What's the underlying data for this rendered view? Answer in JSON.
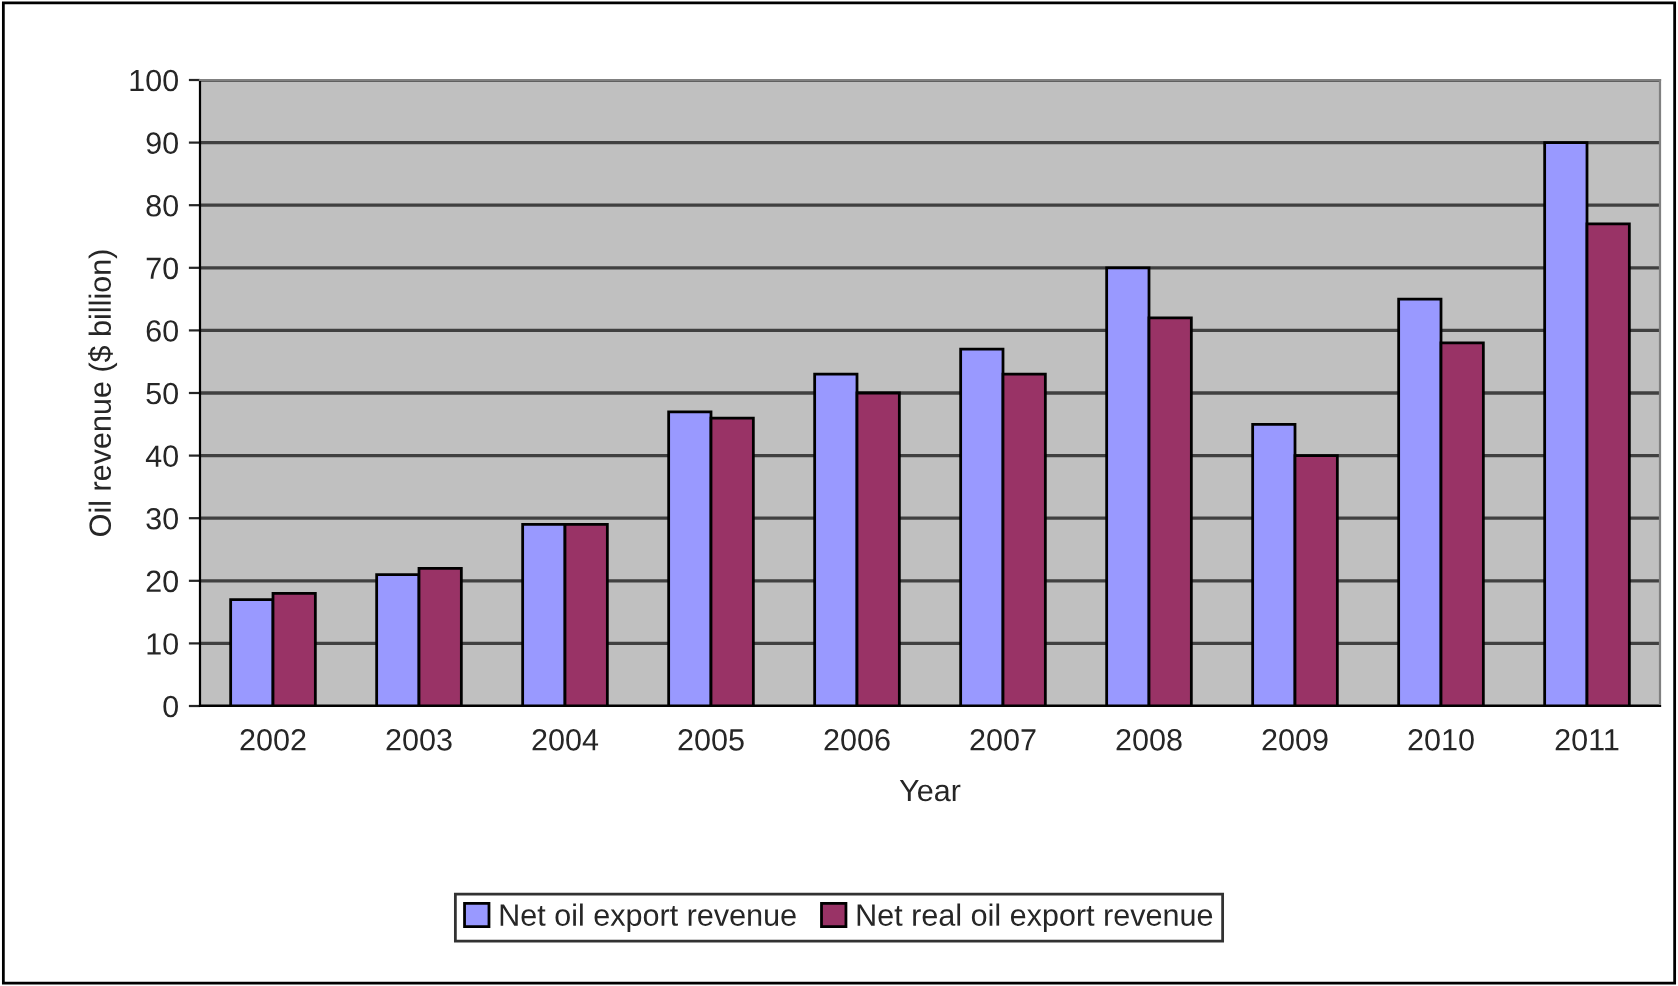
{
  "chart_data": {
    "type": "bar",
    "xlabel": "Year",
    "ylabel": "Oil revenue ($ billion)",
    "categories": [
      "2002",
      "2003",
      "2004",
      "2005",
      "2006",
      "2007",
      "2008",
      "2009",
      "2010",
      "2011"
    ],
    "series": [
      {
        "name": "Net oil export revenue",
        "color": "#9999ff",
        "values": [
          17,
          21,
          29,
          47,
          53,
          57,
          70,
          45,
          65,
          90
        ]
      },
      {
        "name": "Net real oil export revenue",
        "color": "#993366",
        "values": [
          18,
          22,
          29,
          46,
          50,
          53,
          62,
          40,
          58,
          77
        ]
      }
    ],
    "ylim": [
      0,
      100
    ],
    "yticks": [
      0,
      10,
      20,
      30,
      40,
      50,
      60,
      70,
      80,
      90,
      100
    ],
    "grid": "y",
    "legend": "bottom"
  }
}
